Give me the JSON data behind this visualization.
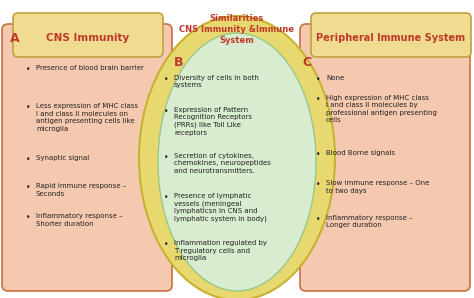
{
  "title_similarities": "Similarities\nCNS Immunity &Immune\nSystem",
  "label_A": "A",
  "label_B": "B",
  "label_C": "C",
  "header_left": "CNS Immunity",
  "header_right": "Peripheral Immune System",
  "left_bullets": [
    "Presence of blood brain barrier",
    "Less expression of MHC class\nI and class II molecules on\nantigen presenting cells like\nmicroglia",
    "Synaptic signal",
    "Rapid immune response –\nSeconds",
    "Inflammatory response –\nShorter duration"
  ],
  "center_bullets": [
    "Diversity of cells in both\nsystems",
    "Expression of Pattern\nRecognition Receptors\n(PRRs) like Toll Like\nreceptors",
    "Secretion of cytokines,\nchemokines, neuropeptides\nand neurotransmitters.",
    "Presence of lymphatic\nvessels (meningeal\nlymphaticsn in CNS and\nlymphatic system in body)",
    "Inflammation regulated by\nT regulatory cells and\nmicroglia"
  ],
  "right_bullets": [
    "None",
    "High expression of MHC class\nI and class II molecules by\nprofessional antigen presenting\ncells",
    "Blood Borne signals",
    "Slow immune response – One\nto two days",
    "Inflammatory response –\nLonger duration"
  ],
  "bg_color": "#ffffff",
  "left_box_bg": "#f5c9b0",
  "left_box_border": "#c87040",
  "right_box_bg": "#f5c9b0",
  "right_box_border": "#c87040",
  "center_outer_fill": "#e8d870",
  "center_outer_edge": "#c8b030",
  "center_inner_fill": "#d8ecd0",
  "center_inner_edge": "#98c888",
  "header_bg": "#f0dc90",
  "header_border": "#c0a040",
  "header_text_color": "#c0392b",
  "label_color": "#c0392b",
  "bullet_text_color": "#222222",
  "title_text_color": "#c0392b"
}
